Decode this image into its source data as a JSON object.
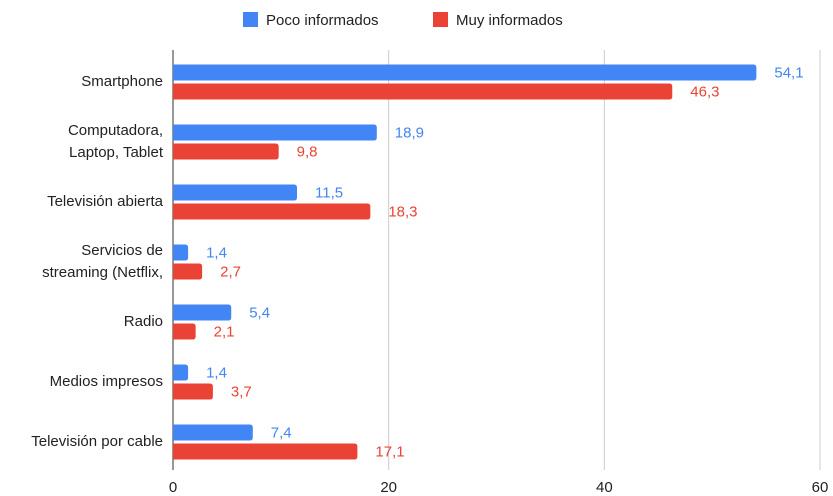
{
  "chart_data": {
    "type": "bar",
    "orientation": "horizontal",
    "categories": [
      [
        "Smartphone"
      ],
      [
        "Computadora,",
        "Laptop, Tablet"
      ],
      [
        "Televisión abierta"
      ],
      [
        "Servicios de",
        "streaming (Netflix,"
      ],
      [
        "Radio"
      ],
      [
        "Medios impresos"
      ],
      [
        "Televisión por cable"
      ]
    ],
    "series": [
      {
        "name": "Poco informados",
        "color": "#4285f4",
        "values": [
          54.1,
          18.9,
          11.5,
          1.4,
          5.4,
          1.4,
          7.4
        ],
        "value_labels": [
          "54,1",
          "18,9",
          "11,5",
          "1,4",
          "5,4",
          "1,4",
          "7,4"
        ]
      },
      {
        "name": "Muy informados",
        "color": "#ea4335",
        "values": [
          46.3,
          9.8,
          18.3,
          2.7,
          2.1,
          3.7,
          17.1
        ],
        "value_labels": [
          "46,3",
          "9,8",
          "18,3",
          "2,7",
          "2,1",
          "3,7",
          "17,1"
        ]
      }
    ],
    "xlim": [
      0,
      60
    ],
    "xticks": [
      0,
      20,
      40,
      60
    ],
    "grid": true,
    "legend": "top"
  }
}
